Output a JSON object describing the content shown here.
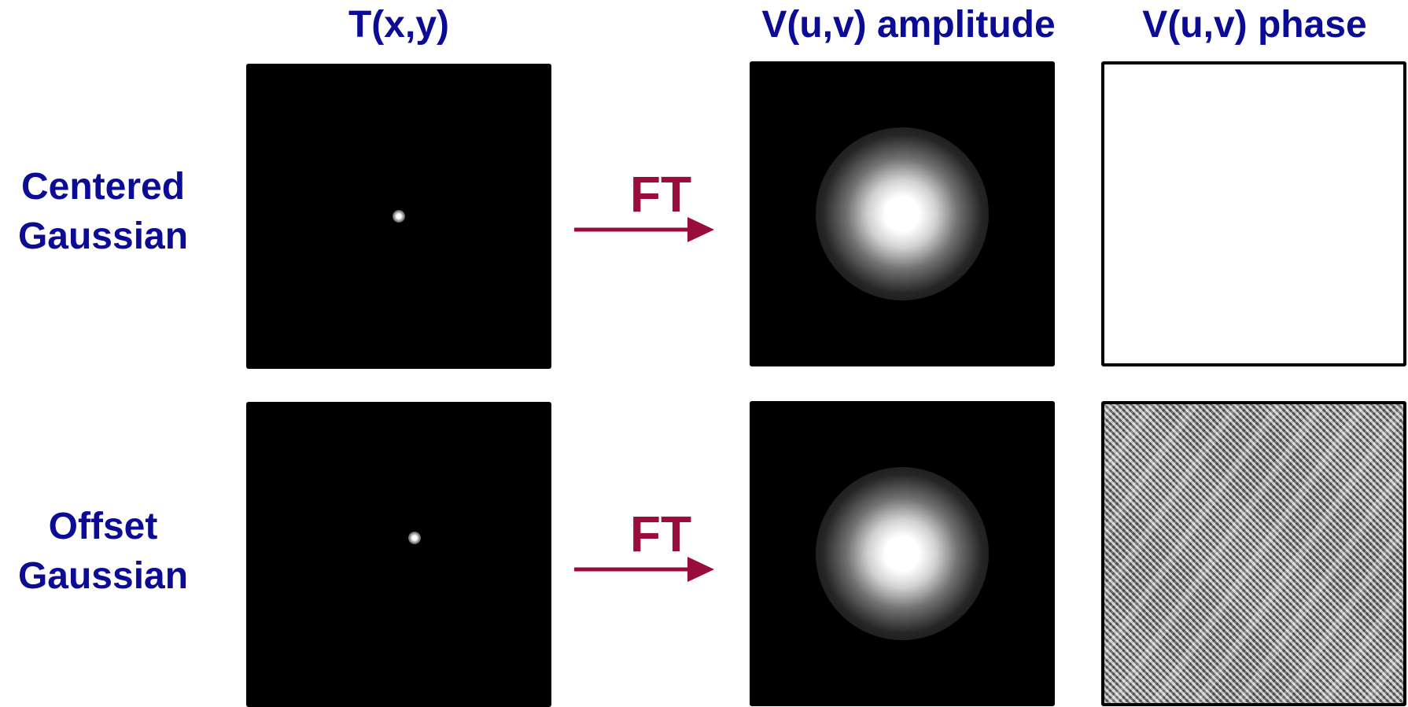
{
  "columns": {
    "source": "T(x,y)",
    "amplitude": "V(u,v) amplitude",
    "phase": "V(u,v) phase"
  },
  "rows": [
    {
      "label_line1": "Centered",
      "label_line2": "Gaussian",
      "transform_label": "FT"
    },
    {
      "label_line1": "Offset",
      "label_line2": "Gaussian",
      "transform_label": "FT"
    }
  ],
  "colors": {
    "header_text": "#0b0b96",
    "arrow": "#9b0c3e",
    "panel_background": "#000000"
  }
}
